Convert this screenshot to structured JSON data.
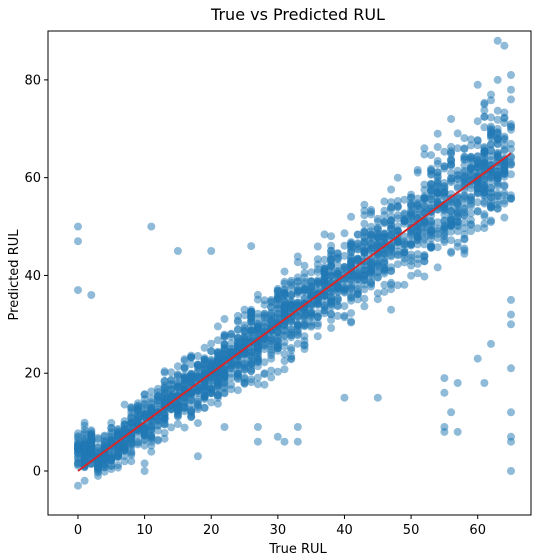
{
  "chart_data": {
    "type": "scatter",
    "title": "True vs Predicted RUL",
    "xlabel": "True RUL",
    "ylabel": "Predicted RUL",
    "xlim": [
      -4.5,
      68
    ],
    "ylim": [
      -9,
      90
    ],
    "xticks": [
      0,
      10,
      20,
      30,
      40,
      50,
      60
    ],
    "yticks": [
      0,
      20,
      40,
      60,
      80
    ],
    "grid": false,
    "point_color": "#1f77b4",
    "point_alpha": 0.5,
    "line_color": "#d62728",
    "reference_line": {
      "x": [
        0,
        65
      ],
      "y": [
        0,
        65
      ]
    },
    "scatter_trend": {
      "x_range": [
        0,
        65
      ],
      "slope": 1.0,
      "spread_min": 3,
      "spread_max": 8,
      "count": 2400
    },
    "outliers": [
      {
        "x": 0,
        "y": 50
      },
      {
        "x": 0,
        "y": 47
      },
      {
        "x": 0,
        "y": 37
      },
      {
        "x": 2,
        "y": 36
      },
      {
        "x": 11,
        "y": 50
      },
      {
        "x": 15,
        "y": 45
      },
      {
        "x": 20,
        "y": 45
      },
      {
        "x": 26,
        "y": 46
      },
      {
        "x": 41,
        "y": 52
      },
      {
        "x": 44,
        "y": 53
      },
      {
        "x": 47,
        "y": 55
      },
      {
        "x": 48,
        "y": 60
      },
      {
        "x": 52,
        "y": 66
      },
      {
        "x": 54,
        "y": 69
      },
      {
        "x": 56,
        "y": 72
      },
      {
        "x": 60,
        "y": 79
      },
      {
        "x": 61,
        "y": 75
      },
      {
        "x": 62,
        "y": 77
      },
      {
        "x": 63,
        "y": 80
      },
      {
        "x": 63,
        "y": 88
      },
      {
        "x": 64,
        "y": 87
      },
      {
        "x": 65,
        "y": 81
      },
      {
        "x": 65,
        "y": 78
      },
      {
        "x": 65,
        "y": 76
      },
      {
        "x": 65,
        "y": 30
      },
      {
        "x": 65,
        "y": 32
      },
      {
        "x": 65,
        "y": 35
      },
      {
        "x": 65,
        "y": 21
      },
      {
        "x": 65,
        "y": 12
      },
      {
        "x": 65,
        "y": 7
      },
      {
        "x": 65,
        "y": 6
      },
      {
        "x": 65,
        "y": 0
      },
      {
        "x": 57,
        "y": 18
      },
      {
        "x": 55,
        "y": 19
      },
      {
        "x": 56,
        "y": 12
      },
      {
        "x": 55,
        "y": 16
      },
      {
        "x": 55,
        "y": 9
      },
      {
        "x": 55,
        "y": 8
      },
      {
        "x": 57,
        "y": 8
      },
      {
        "x": 60,
        "y": 23
      },
      {
        "x": 61,
        "y": 18
      },
      {
        "x": 62,
        "y": 26
      },
      {
        "x": 45,
        "y": 15
      },
      {
        "x": 40,
        "y": 15
      },
      {
        "x": 33,
        "y": 9
      },
      {
        "x": 33,
        "y": 6
      },
      {
        "x": 30,
        "y": 7
      },
      {
        "x": 31,
        "y": 6
      },
      {
        "x": 27,
        "y": 9
      },
      {
        "x": 27,
        "y": 6
      },
      {
        "x": 22,
        "y": 9
      },
      {
        "x": 18,
        "y": 3
      },
      {
        "x": 10,
        "y": 0
      },
      {
        "x": 8,
        "y": 2
      },
      {
        "x": 0,
        "y": -3
      },
      {
        "x": 1,
        "y": -2
      },
      {
        "x": 3,
        "y": -1
      },
      {
        "x": 5,
        "y": 1
      },
      {
        "x": 6,
        "y": 3
      }
    ]
  }
}
